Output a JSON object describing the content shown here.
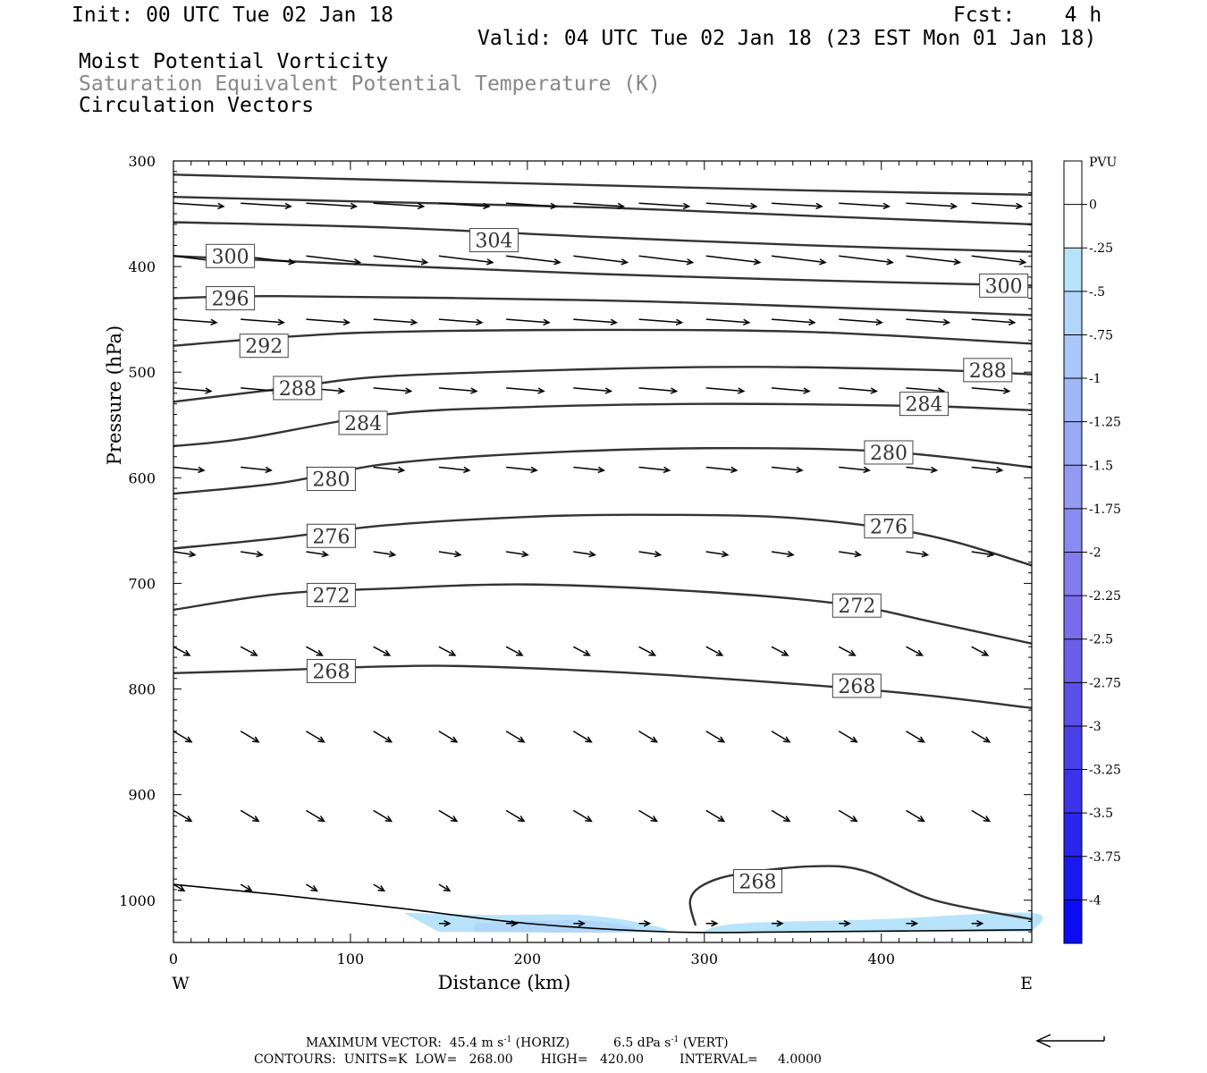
{
  "header": {
    "init": "Init: 00 UTC Tue 02 Jan 18",
    "fcst": "Fcst:    4 h",
    "valid": "Valid: 04 UTC Tue 02 Jan 18 (23 EST Mon 01 Jan 18)",
    "field1": "Moist Potential Vorticity",
    "field2": "Saturation Equivalent Potential Temperature (K)",
    "field3": "Circulation Vectors"
  },
  "footer": {
    "maxvec_label": "MAXIMUM VECTOR:",
    "maxvec_horiz": "45.4 m s",
    "maxvec_horiz_unit": "(HORIZ)",
    "maxvec_vert": "6.5 dPa s",
    "maxvec_vert_unit": "(VERT)",
    "exp": "-1",
    "contours": "CONTOURS:  UNITS=K  LOW=   268.00       HIGH=   420.00         INTERVAL=     4.0000"
  },
  "colors": {
    "contour": "#333333",
    "vector": "#000000",
    "frame": "#000000"
  },
  "chart_data": {
    "type": "contour-cross-section",
    "xlabel": "Distance (km)",
    "ylabel": "Pressure (hPa)",
    "xlim": [
      0,
      485
    ],
    "ylim": [
      300,
      1040
    ],
    "y_reversed": true,
    "xticks": [
      "0",
      "100",
      "200",
      "300",
      "400"
    ],
    "yticks": [
      "300",
      "400",
      "500",
      "600",
      "700",
      "800",
      "900",
      "1000"
    ],
    "x_endpoint_labels": [
      "W",
      "E"
    ],
    "colorbar": {
      "unit": "PVU",
      "labels": [
        "0",
        "-.25",
        "-.5",
        "-.75",
        "-1",
        "-1.25",
        "-1.5",
        "-1.75",
        "-2",
        "-2.25",
        "-2.5",
        "-2.75",
        "-3",
        "-3.25",
        "-3.5",
        "-3.75",
        "-4"
      ],
      "colors": [
        "#ffffff",
        "#ffffff",
        "#b8e4fb",
        "#b1d6fa",
        "#a9c7f8",
        "#a1b8f6",
        "#99a9f4",
        "#929af2",
        "#8a8bf0",
        "#827cee",
        "#7a6dec",
        "#6b5eea",
        "#5a4fe8",
        "#4a40e8",
        "#3a33ea",
        "#2a26ec",
        "#1a1aee",
        "#0c0cf4"
      ]
    },
    "contour_labels": [
      {
        "value": "304",
        "x": 167,
        "p": 375
      },
      {
        "value": "300",
        "x": 18,
        "p": 390
      },
      {
        "value": "300",
        "x": 455,
        "p": 418
      },
      {
        "value": "296",
        "x": 18,
        "p": 430
      },
      {
        "value": "292",
        "x": 37,
        "p": 475
      },
      {
        "value": "288",
        "x": 56,
        "p": 515
      },
      {
        "value": "288",
        "x": 446,
        "p": 498
      },
      {
        "value": "284",
        "x": 93,
        "p": 548
      },
      {
        "value": "284",
        "x": 410,
        "p": 530
      },
      {
        "value": "280",
        "x": 75,
        "p": 601
      },
      {
        "value": "280",
        "x": 390,
        "p": 576
      },
      {
        "value": "276",
        "x": 75,
        "p": 655
      },
      {
        "value": "276",
        "x": 390,
        "p": 646
      },
      {
        "value": "272",
        "x": 75,
        "p": 711
      },
      {
        "value": "272",
        "x": 372,
        "p": 721
      },
      {
        "value": "268",
        "x": 75,
        "p": 783
      },
      {
        "value": "268",
        "x": 372,
        "p": 797
      },
      {
        "value": "268",
        "x": 316,
        "p": 982
      }
    ],
    "contours": [
      {
        "value": 312,
        "points": [
          [
            0,
            313
          ],
          [
            120,
            318
          ],
          [
            240,
            323
          ],
          [
            360,
            328
          ],
          [
            485,
            332
          ]
        ]
      },
      {
        "value": 308,
        "points": [
          [
            0,
            334
          ],
          [
            120,
            339
          ],
          [
            240,
            344
          ],
          [
            360,
            352
          ],
          [
            485,
            360
          ]
        ]
      },
      {
        "value": 304,
        "points": [
          [
            0,
            358
          ],
          [
            120,
            363
          ],
          [
            240,
            372
          ],
          [
            360,
            380
          ],
          [
            485,
            386
          ]
        ]
      },
      {
        "value": 300,
        "points": [
          [
            0,
            390
          ],
          [
            120,
            399
          ],
          [
            240,
            407
          ],
          [
            360,
            413
          ],
          [
            485,
            418
          ]
        ]
      },
      {
        "value": 296,
        "points": [
          [
            0,
            430
          ],
          [
            60,
            428
          ],
          [
            240,
            432
          ],
          [
            360,
            438
          ],
          [
            485,
            446
          ]
        ]
      },
      {
        "value": 292,
        "points": [
          [
            0,
            475
          ],
          [
            60,
            467
          ],
          [
            120,
            462
          ],
          [
            240,
            460
          ],
          [
            360,
            462
          ],
          [
            485,
            473
          ]
        ]
      },
      {
        "value": 288,
        "points": [
          [
            0,
            528
          ],
          [
            60,
            516
          ],
          [
            120,
            504
          ],
          [
            240,
            497
          ],
          [
            330,
            495
          ],
          [
            430,
            498
          ],
          [
            485,
            502
          ]
        ]
      },
      {
        "value": 284,
        "points": [
          [
            0,
            570
          ],
          [
            40,
            563
          ],
          [
            120,
            540
          ],
          [
            200,
            533
          ],
          [
            300,
            530
          ],
          [
            420,
            532
          ],
          [
            485,
            536
          ]
        ]
      },
      {
        "value": 280,
        "points": [
          [
            0,
            615
          ],
          [
            60,
            605
          ],
          [
            120,
            587
          ],
          [
            200,
            577
          ],
          [
            300,
            572
          ],
          [
            400,
            575
          ],
          [
            485,
            590
          ]
        ]
      },
      {
        "value": 276,
        "points": [
          [
            0,
            667
          ],
          [
            60,
            657
          ],
          [
            120,
            645
          ],
          [
            200,
            637
          ],
          [
            260,
            635
          ],
          [
            340,
            637
          ],
          [
            400,
            647
          ],
          [
            440,
            660
          ],
          [
            485,
            683
          ]
        ]
      },
      {
        "value": 272,
        "points": [
          [
            0,
            725
          ],
          [
            60,
            710
          ],
          [
            120,
            705
          ],
          [
            200,
            701
          ],
          [
            300,
            708
          ],
          [
            380,
            720
          ],
          [
            430,
            737
          ],
          [
            485,
            757
          ]
        ]
      },
      {
        "value": 268,
        "points": [
          [
            0,
            785
          ],
          [
            60,
            782
          ],
          [
            150,
            778
          ],
          [
            250,
            784
          ],
          [
            350,
            795
          ],
          [
            420,
            805
          ],
          [
            485,
            818
          ]
        ]
      },
      {
        "value": 268,
        "points": [
          [
            295,
            1024
          ],
          [
            292,
            1000
          ],
          [
            300,
            985
          ],
          [
            320,
            975
          ],
          [
            360,
            968
          ],
          [
            390,
            972
          ],
          [
            430,
            1000
          ],
          [
            485,
            1018
          ]
        ]
      }
    ],
    "terrain": [
      [
        0,
        985
      ],
      [
        60,
        995
      ],
      [
        130,
        1008
      ],
      [
        200,
        1022
      ],
      [
        280,
        1030
      ],
      [
        350,
        1030
      ],
      [
        485,
        1028
      ]
    ],
    "pv_shading": [
      {
        "level": "-.25",
        "points": [
          [
            130,
            1012
          ],
          [
            180,
            1014
          ],
          [
            230,
            1014
          ],
          [
            265,
            1022
          ],
          [
            270,
            1030
          ],
          [
            150,
            1030
          ]
        ]
      },
      {
        "level": "-.5",
        "points": [
          [
            170,
            1022
          ],
          [
            220,
            1019
          ],
          [
            250,
            1022
          ],
          [
            255,
            1030
          ],
          [
            170,
            1030
          ]
        ]
      },
      {
        "level": "-.25",
        "points": [
          [
            298,
            1030
          ],
          [
            320,
            1022
          ],
          [
            400,
            1018
          ],
          [
            485,
            1012
          ],
          [
            485,
            1030
          ]
        ]
      }
    ],
    "vectors": [
      {
        "p": 340,
        "xs": [
          0,
          38,
          75,
          113,
          150,
          188,
          226,
          263,
          301,
          338,
          376,
          414,
          451
        ],
        "u": 28,
        "v": 0.3
      },
      {
        "p": 390,
        "xs": [
          0,
          38,
          75,
          113,
          150,
          188,
          226,
          263,
          301,
          338,
          376,
          414,
          451
        ],
        "u": 30,
        "v": 0.6
      },
      {
        "p": 450,
        "xs": [
          0,
          38,
          75,
          113,
          150,
          188,
          226,
          263,
          301,
          338,
          376,
          414,
          451
        ],
        "u": 24,
        "v": 0.3
      },
      {
        "p": 515,
        "xs": [
          0,
          38,
          75,
          113,
          150,
          188,
          226,
          263,
          301,
          338,
          376,
          414,
          451
        ],
        "u": 21,
        "v": 0.3
      },
      {
        "p": 590,
        "xs": [
          0,
          38,
          75,
          113,
          150,
          188,
          226,
          263,
          301,
          338,
          376,
          414,
          451
        ],
        "u": 17,
        "v": 0.3
      },
      {
        "p": 670,
        "xs": [
          0,
          38,
          75,
          113,
          150,
          188,
          226,
          263,
          301,
          338,
          376,
          414,
          451
        ],
        "u": 12,
        "v": 0.3
      },
      {
        "p": 760,
        "xs": [
          0,
          38,
          75,
          113,
          150,
          188,
          226,
          263,
          301,
          338,
          376,
          414,
          451
        ],
        "u": 9,
        "v": 0.8
      },
      {
        "p": 840,
        "xs": [
          0,
          38,
          75,
          113,
          150,
          188,
          226,
          263,
          301,
          338,
          376,
          414,
          451
        ],
        "u": 10,
        "v": 1.0
      },
      {
        "p": 915,
        "xs": [
          0,
          38,
          75,
          113,
          150,
          188,
          226,
          263,
          301,
          338,
          376,
          414,
          451
        ],
        "u": 10,
        "v": 1.0
      },
      {
        "p": 985,
        "xs": [
          0,
          38,
          75,
          113,
          150
        ],
        "u": 6,
        "v": 0.6
      },
      {
        "p": 1022,
        "xs": [
          150,
          188,
          226,
          263,
          301,
          338,
          376,
          414,
          451
        ],
        "u": 6,
        "v": 0
      }
    ]
  }
}
